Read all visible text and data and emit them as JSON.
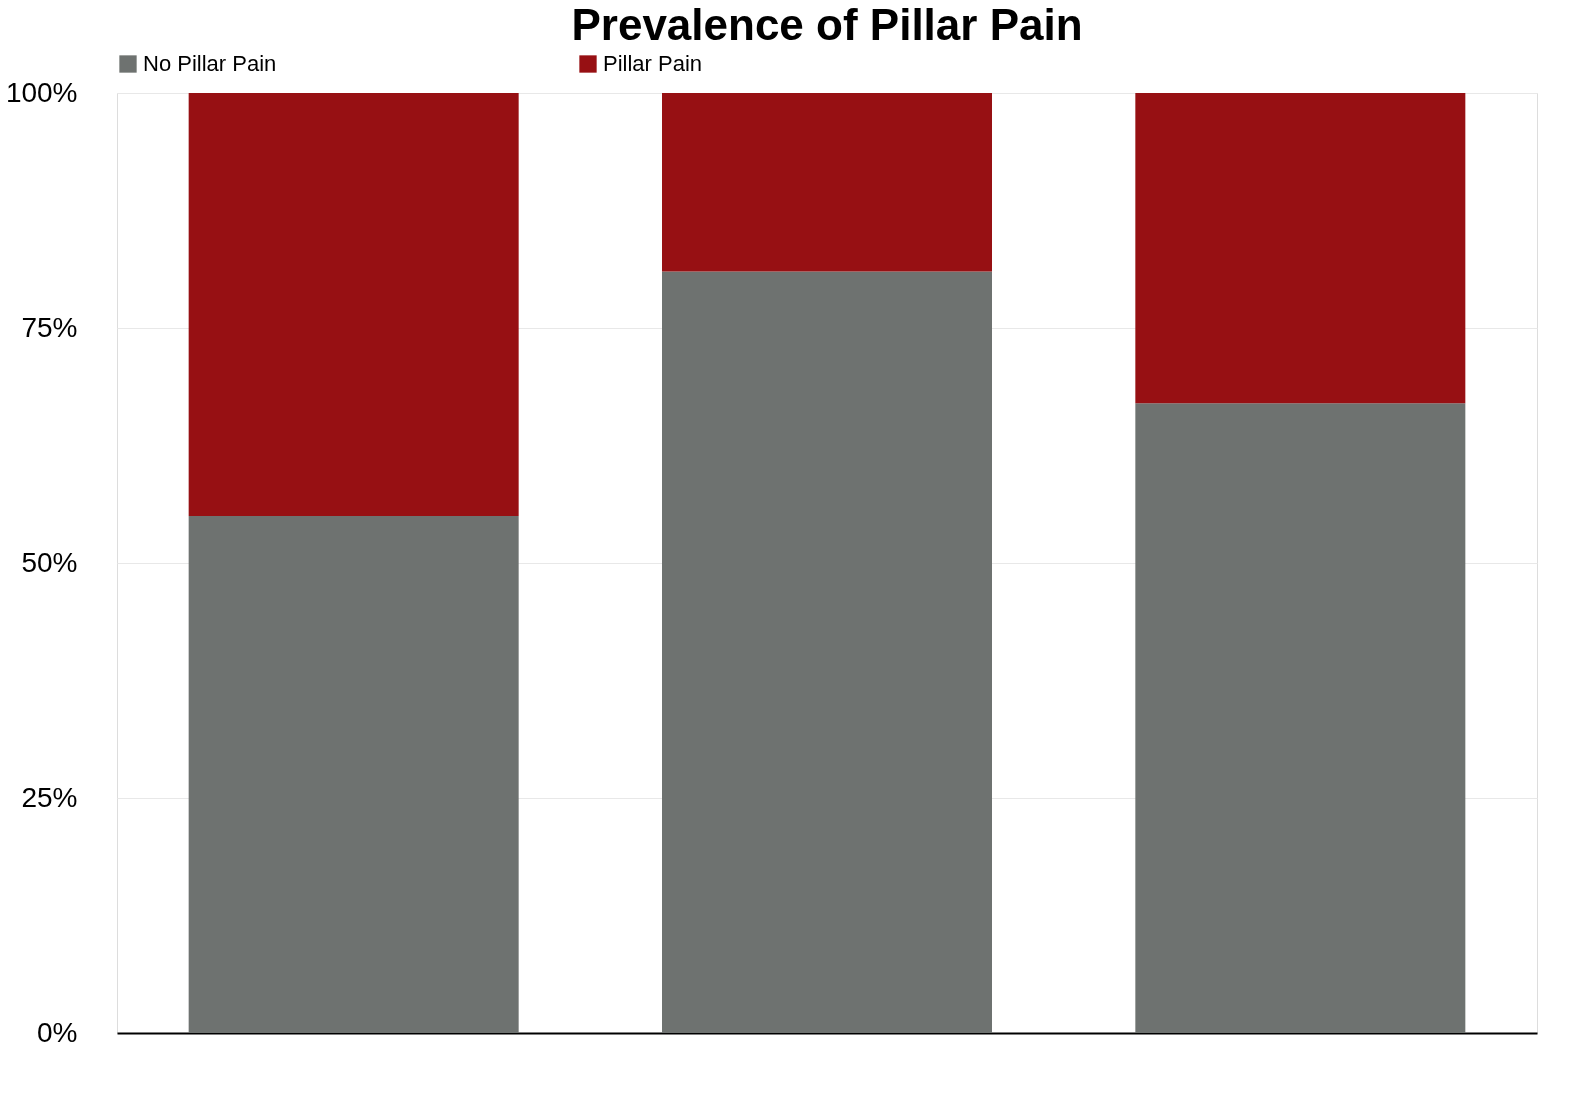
{
  "chart_data": {
    "type": "bar",
    "title": "Prevalence of Pillar Pain",
    "categories": [
      null,
      null,
      null
    ],
    "stacked": true,
    "series": [
      {
        "name": "No Pillar Pain",
        "color": "#6e7270",
        "values": [
          55,
          81,
          67
        ]
      },
      {
        "name": "Pillar Pain",
        "color": "#971013",
        "values": [
          45,
          19,
          33
        ]
      }
    ],
    "ylim": [
      0,
      100
    ],
    "yticks": [
      {
        "value": 0,
        "label": "0%"
      },
      {
        "value": 25,
        "label": "25%"
      },
      {
        "value": 50,
        "label": "50%"
      },
      {
        "value": 75,
        "label": "75%"
      },
      {
        "value": 100,
        "label": "100%"
      }
    ],
    "grid": "y",
    "legend": "top"
  }
}
